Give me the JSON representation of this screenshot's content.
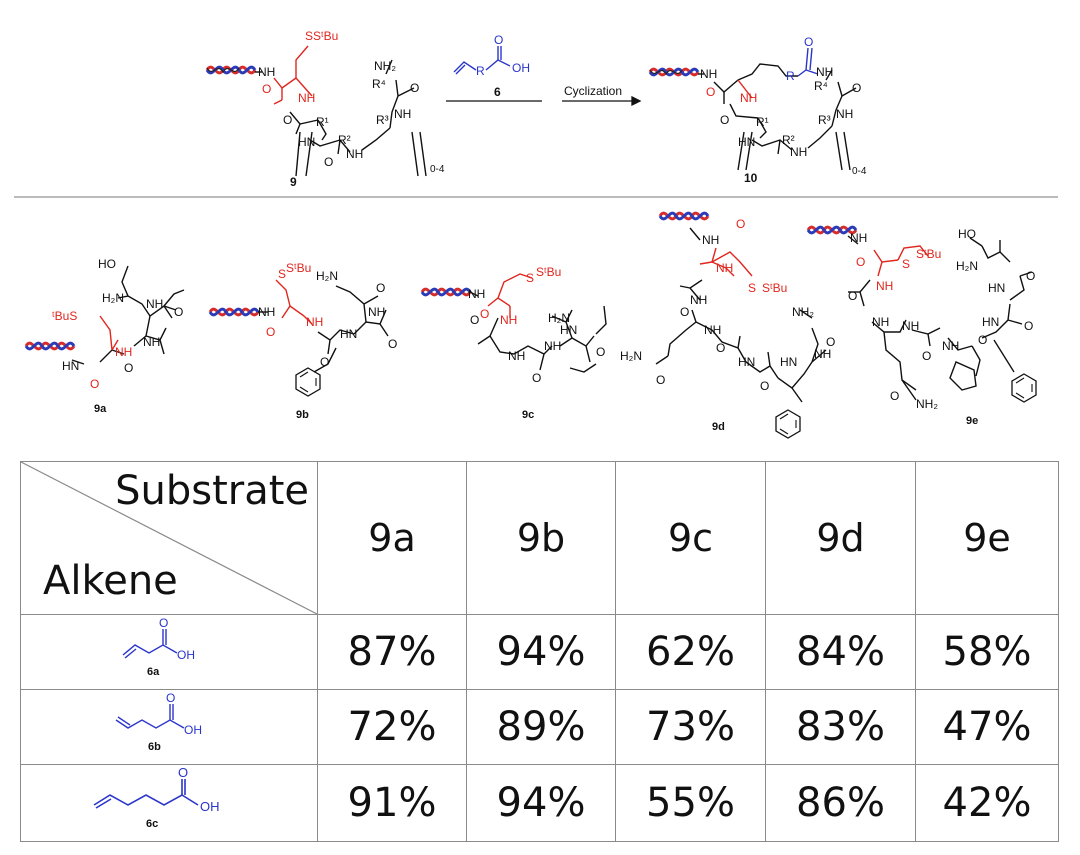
{
  "scheme": {
    "start_label": "9",
    "reagent_label": "6",
    "arrow_text": "Cyclization",
    "product_label": "10",
    "repeat_subscript": "0-4",
    "atoms": {
      "sulfur": "S",
      "stbu": "SᵗBu",
      "nh": "NH",
      "hn": "HN",
      "nh2": "NH₂",
      "oh": "OH",
      "o": "O",
      "r": "R",
      "r1": "R¹",
      "r2": "R²",
      "r3": "R³",
      "r4": "R⁴"
    }
  },
  "substrates": [
    {
      "label": "9a"
    },
    {
      "label": "9b"
    },
    {
      "label": "9c"
    },
    {
      "label": "9d"
    },
    {
      "label": "9e"
    }
  ],
  "substrate_atoms": {
    "ho": "HO",
    "tbus": "ᵗBuS",
    "h2n": "H₂N",
    "nh2": "NH₂"
  },
  "table": {
    "header_substrate": "Substrate",
    "header_alkene": "Alkene",
    "columns": [
      "9a",
      "9b",
      "9c",
      "9d",
      "9e"
    ],
    "rows": [
      {
        "alkene": "6a",
        "yields": [
          "87%",
          "94%",
          "62%",
          "84%",
          "58%"
        ]
      },
      {
        "alkene": "6b",
        "yields": [
          "72%",
          "89%",
          "73%",
          "83%",
          "47%"
        ]
      },
      {
        "alkene": "6c",
        "yields": [
          "91%",
          "94%",
          "55%",
          "86%",
          "42%"
        ]
      }
    ]
  },
  "colors": {
    "cysteine_red": "#e0261e",
    "alkene_blue": "#2a35c9",
    "dna_red": "#d62c2c",
    "dna_blue": "#2b3bb8",
    "bond_black": "#111111",
    "grid_gray": "#8a8a8a"
  }
}
